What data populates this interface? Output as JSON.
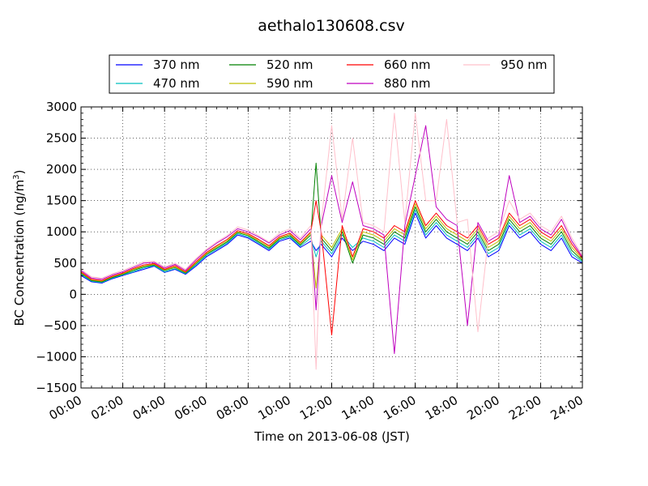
{
  "chart_data": {
    "type": "line",
    "title": "aethalo130608.csv",
    "xlabel": "Time on 2013-06-08 (JST)",
    "ylabel_main": "BC Concentration (ng/m",
    "ylabel_sup": "3",
    "ylabel_tail": ")",
    "x_hours_range": [
      0,
      24
    ],
    "ylim": [
      -1500,
      3000
    ],
    "x_ticks": [
      {
        "hour": 0,
        "label": "00:00"
      },
      {
        "hour": 2,
        "label": "02:00"
      },
      {
        "hour": 4,
        "label": "04:00"
      },
      {
        "hour": 6,
        "label": "06:00"
      },
      {
        "hour": 8,
        "label": "08:00"
      },
      {
        "hour": 10,
        "label": "10:00"
      },
      {
        "hour": 12,
        "label": "12:00"
      },
      {
        "hour": 14,
        "label": "14:00"
      },
      {
        "hour": 16,
        "label": "16:00"
      },
      {
        "hour": 18,
        "label": "18:00"
      },
      {
        "hour": 20,
        "label": "20:00"
      },
      {
        "hour": 22,
        "label": "22:00"
      },
      {
        "hour": 24,
        "label": "24:00"
      }
    ],
    "y_ticks": [
      {
        "value": 3000,
        "label": "3000"
      },
      {
        "value": 2500,
        "label": "2500"
      },
      {
        "value": 2000,
        "label": "2000"
      },
      {
        "value": 1500,
        "label": "1500"
      },
      {
        "value": 1000,
        "label": "1000"
      },
      {
        "value": 500,
        "label": "500"
      },
      {
        "value": 0,
        "label": "0"
      },
      {
        "value": -500,
        "label": "−500"
      },
      {
        "value": -1000,
        "label": "−1000"
      },
      {
        "value": -1500,
        "label": "−1500"
      }
    ],
    "grid": true,
    "legend_placement": "top-center",
    "hours": [
      0,
      0.5,
      1,
      1.5,
      2,
      2.5,
      3,
      3.5,
      4,
      4.5,
      5,
      5.5,
      6,
      6.5,
      7,
      7.5,
      8,
      8.5,
      9,
      9.5,
      10,
      10.5,
      11,
      11.25,
      11.5,
      12,
      12.5,
      13,
      13.5,
      14,
      14.5,
      15,
      15.5,
      16,
      16.5,
      17,
      17.5,
      18,
      18.5,
      19,
      19.5,
      20,
      20.5,
      21,
      21.5,
      22,
      22.5,
      23,
      23.5,
      24
    ],
    "series": [
      {
        "name": "370 nm",
        "color": "#0000ff",
        "values": [
          300,
          200,
          180,
          250,
          300,
          350,
          400,
          450,
          350,
          400,
          320,
          450,
          600,
          700,
          800,
          950,
          900,
          800,
          700,
          850,
          900,
          750,
          850,
          700,
          800,
          600,
          900,
          700,
          850,
          800,
          700,
          900,
          800,
          1300,
          900,
          1100,
          900,
          800,
          700,
          900,
          600,
          700,
          1100,
          900,
          1000,
          800,
          700,
          900,
          600,
          500
        ]
      },
      {
        "name": "470 nm",
        "color": "#00bfbf",
        "values": [
          320,
          210,
          190,
          260,
          310,
          360,
          420,
          460,
          360,
          410,
          330,
          470,
          620,
          720,
          820,
          970,
          920,
          820,
          720,
          870,
          920,
          770,
          900,
          600,
          850,
          650,
          950,
          750,
          900,
          850,
          750,
          950,
          850,
          1350,
          950,
          1150,
          950,
          850,
          750,
          950,
          650,
          750,
          1150,
          950,
          1050,
          850,
          750,
          950,
          650,
          520
        ]
      },
      {
        "name": "520 nm",
        "color": "#008000",
        "values": [
          340,
          220,
          200,
          270,
          320,
          380,
          440,
          470,
          380,
          430,
          340,
          490,
          640,
          740,
          840,
          990,
          940,
          840,
          740,
          890,
          940,
          790,
          950,
          2100,
          900,
          700,
          1000,
          500,
          950,
          900,
          800,
          1000,
          900,
          1400,
          1000,
          1200,
          1000,
          900,
          800,
          1000,
          700,
          800,
          1200,
          1000,
          1100,
          900,
          800,
          1000,
          700,
          540
        ]
      },
      {
        "name": "590 nm",
        "color": "#bfbf00",
        "values": [
          350,
          230,
          210,
          280,
          330,
          400,
          450,
          480,
          390,
          440,
          350,
          500,
          650,
          760,
          860,
          1000,
          950,
          860,
          760,
          900,
          960,
          810,
          980,
          100,
          950,
          750,
          1050,
          550,
          1000,
          950,
          850,
          1050,
          950,
          1450,
          1050,
          1250,
          1050,
          950,
          850,
          1050,
          750,
          850,
          1250,
          1050,
          1150,
          950,
          850,
          1050,
          750,
          560
        ]
      },
      {
        "name": "660 nm",
        "color": "#ff0000",
        "values": [
          360,
          240,
          220,
          290,
          340,
          410,
          470,
          490,
          400,
          460,
          360,
          520,
          670,
          780,
          880,
          1020,
          970,
          880,
          780,
          920,
          980,
          830,
          1000,
          1500,
          1000,
          -650,
          1100,
          600,
          1050,
          1000,
          900,
          1100,
          1000,
          1500,
          1100,
          1300,
          1100,
          1000,
          900,
          1100,
          800,
          900,
          1300,
          1100,
          1200,
          1000,
          900,
          1100,
          800,
          580
        ]
      },
      {
        "name": "880 nm",
        "color": "#bf00bf",
        "values": [
          380,
          260,
          240,
          310,
          360,
          430,
          500,
          510,
          420,
          480,
          380,
          550,
          700,
          820,
          920,
          1050,
          1000,
          920,
          820,
          950,
          1020,
          870,
          1050,
          -250,
          1100,
          1900,
          1150,
          1800,
          1100,
          1050,
          950,
          -950,
          1100,
          1900,
          2700,
          1400,
          1200,
          1100,
          -500,
          1150,
          850,
          950,
          1900,
          1150,
          1250,
          1050,
          950,
          1200,
          850,
          600
        ]
      },
      {
        "name": "950 nm",
        "color": "#ffc0cb",
        "values": [
          400,
          280,
          260,
          330,
          380,
          450,
          520,
          530,
          440,
          500,
          400,
          570,
          720,
          840,
          940,
          1080,
          1030,
          940,
          840,
          980,
          1050,
          900,
          1100,
          -1200,
          1150,
          2700,
          1200,
          2500,
          1150,
          1100,
          1000,
          2900,
          1150,
          2900,
          1500,
          1500,
          2800,
          1150,
          1200,
          -600,
          900,
          1000,
          1500,
          1200,
          1300,
          1100,
          1000,
          1250,
          900,
          620
        ]
      }
    ]
  }
}
